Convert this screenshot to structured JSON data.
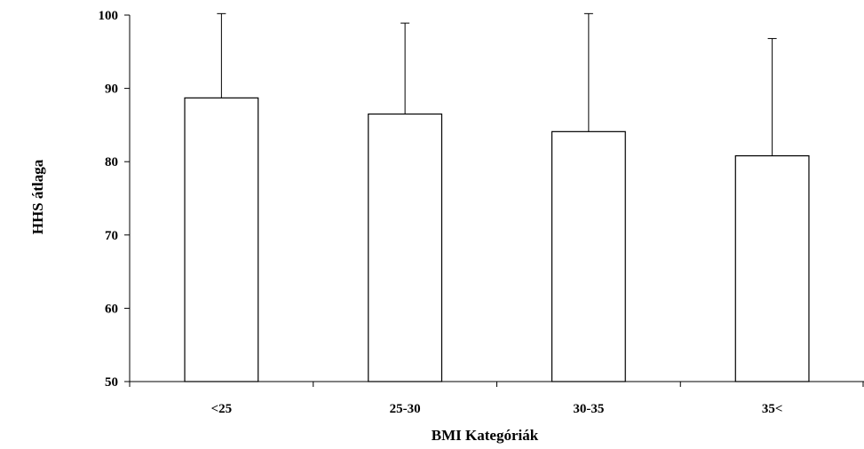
{
  "chart_data": {
    "type": "bar",
    "categories": [
      "<25",
      "25-30",
      "30-35",
      "35<"
    ],
    "values": [
      88.7,
      86.5,
      84.1,
      80.8
    ],
    "error_upper": [
      100.2,
      98.9,
      100.2,
      96.8
    ],
    "xlabel": "BMI Kategóriák",
    "ylabel": "HHS átlaga",
    "ylim": [
      50,
      100
    ],
    "yticks": [
      "50",
      "60",
      "70",
      "80",
      "90",
      "100"
    ],
    "grid": false,
    "legend": "none",
    "bar_fill": "#ffffff",
    "bar_stroke": "#000000"
  }
}
